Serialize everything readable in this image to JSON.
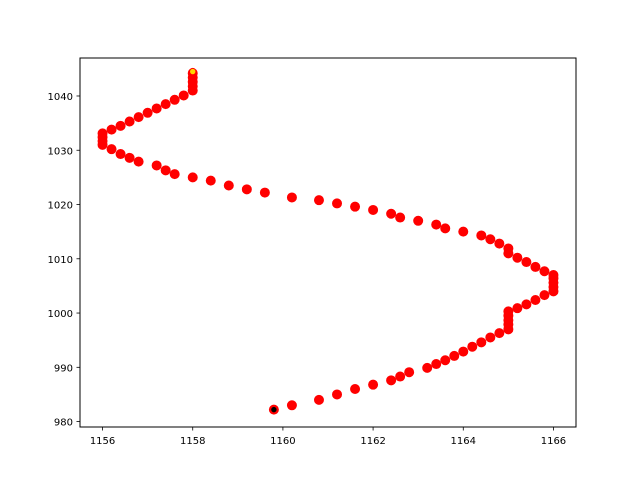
{
  "chart_data": {
    "type": "scatter",
    "title": "",
    "xlabel": "",
    "ylabel": "",
    "xlim": [
      1155.5,
      1166.5
    ],
    "ylim": [
      979,
      1047
    ],
    "x_ticks": [
      1156,
      1158,
      1160,
      1162,
      1164,
      1166
    ],
    "y_ticks": [
      980,
      990,
      1000,
      1010,
      1020,
      1030,
      1040
    ],
    "x_tick_labels": [
      "1156",
      "1158",
      "1160",
      "1162",
      "1164",
      "1166"
    ],
    "y_tick_labels": [
      "980",
      "990",
      "1000",
      "1010",
      "1020",
      "1030",
      "1040"
    ],
    "grid": false,
    "series": [
      {
        "color": "#ff0000",
        "edge_color": "#ff0000",
        "points": [
          [
            1159.8,
            982.2
          ],
          [
            1160.2,
            983.0
          ],
          [
            1160.8,
            984.0
          ],
          [
            1161.2,
            985.0
          ],
          [
            1161.6,
            986.0
          ],
          [
            1162.0,
            986.8
          ],
          [
            1162.4,
            987.6
          ],
          [
            1162.6,
            988.3
          ],
          [
            1162.8,
            989.1
          ],
          [
            1163.2,
            989.9
          ],
          [
            1163.4,
            990.6
          ],
          [
            1163.6,
            991.3
          ],
          [
            1163.8,
            992.1
          ],
          [
            1164.0,
            992.9
          ],
          [
            1164.2,
            993.8
          ],
          [
            1164.4,
            994.6
          ],
          [
            1164.6,
            995.5
          ],
          [
            1164.8,
            996.3
          ],
          [
            1165.0,
            997.0
          ],
          [
            1165.0,
            997.9
          ],
          [
            1165.0,
            998.7
          ],
          [
            1165.0,
            999.5
          ],
          [
            1165.0,
            1000.3
          ],
          [
            1165.2,
            1000.9
          ],
          [
            1165.4,
            1001.6
          ],
          [
            1165.6,
            1002.4
          ],
          [
            1165.8,
            1003.3
          ],
          [
            1166.0,
            1004.0
          ],
          [
            1166.0,
            1004.8
          ],
          [
            1166.0,
            1005.6
          ],
          [
            1166.0,
            1006.4
          ],
          [
            1166.0,
            1007.0
          ],
          [
            1165.8,
            1007.7
          ],
          [
            1165.6,
            1008.5
          ],
          [
            1165.4,
            1009.4
          ],
          [
            1165.2,
            1010.2
          ],
          [
            1165.0,
            1011.0
          ],
          [
            1165.0,
            1011.9
          ],
          [
            1164.8,
            1012.8
          ],
          [
            1164.6,
            1013.6
          ],
          [
            1164.4,
            1014.3
          ],
          [
            1164.0,
            1015.0
          ],
          [
            1163.6,
            1015.6
          ],
          [
            1163.4,
            1016.3
          ],
          [
            1163.0,
            1017.0
          ],
          [
            1162.6,
            1017.6
          ],
          [
            1162.4,
            1018.3
          ],
          [
            1162.0,
            1019.0
          ],
          [
            1161.6,
            1019.6
          ],
          [
            1161.2,
            1020.2
          ],
          [
            1160.8,
            1020.8
          ],
          [
            1160.2,
            1021.3
          ],
          [
            1159.6,
            1022.2
          ],
          [
            1159.2,
            1022.8
          ],
          [
            1158.8,
            1023.5
          ],
          [
            1158.4,
            1024.4
          ],
          [
            1158.0,
            1025.0
          ],
          [
            1157.6,
            1025.6
          ],
          [
            1157.4,
            1026.3
          ],
          [
            1157.2,
            1027.2
          ],
          [
            1156.8,
            1027.9
          ],
          [
            1156.6,
            1028.6
          ],
          [
            1156.4,
            1029.3
          ],
          [
            1156.2,
            1030.2
          ],
          [
            1156.0,
            1031.0
          ],
          [
            1156.0,
            1031.7
          ],
          [
            1156.0,
            1032.4
          ],
          [
            1156.0,
            1033.1
          ],
          [
            1156.2,
            1033.8
          ],
          [
            1156.4,
            1034.5
          ],
          [
            1156.6,
            1035.3
          ],
          [
            1156.8,
            1036.1
          ],
          [
            1157.0,
            1036.9
          ],
          [
            1157.2,
            1037.7
          ],
          [
            1157.4,
            1038.5
          ],
          [
            1157.6,
            1039.3
          ],
          [
            1157.8,
            1040.1
          ],
          [
            1158.0,
            1041.0
          ],
          [
            1158.0,
            1041.8
          ],
          [
            1158.0,
            1042.6
          ],
          [
            1158.0,
            1043.4
          ],
          [
            1158.0,
            1044.2
          ]
        ]
      }
    ],
    "start_marker": {
      "x": 1159.8,
      "y": 982.2,
      "color": "#000000",
      "edge_color": "#ff0000"
    },
    "end_marker": {
      "x": 1158.0,
      "y": 1044.5,
      "color": "#ffd700",
      "edge_color": "#ff0000"
    }
  }
}
